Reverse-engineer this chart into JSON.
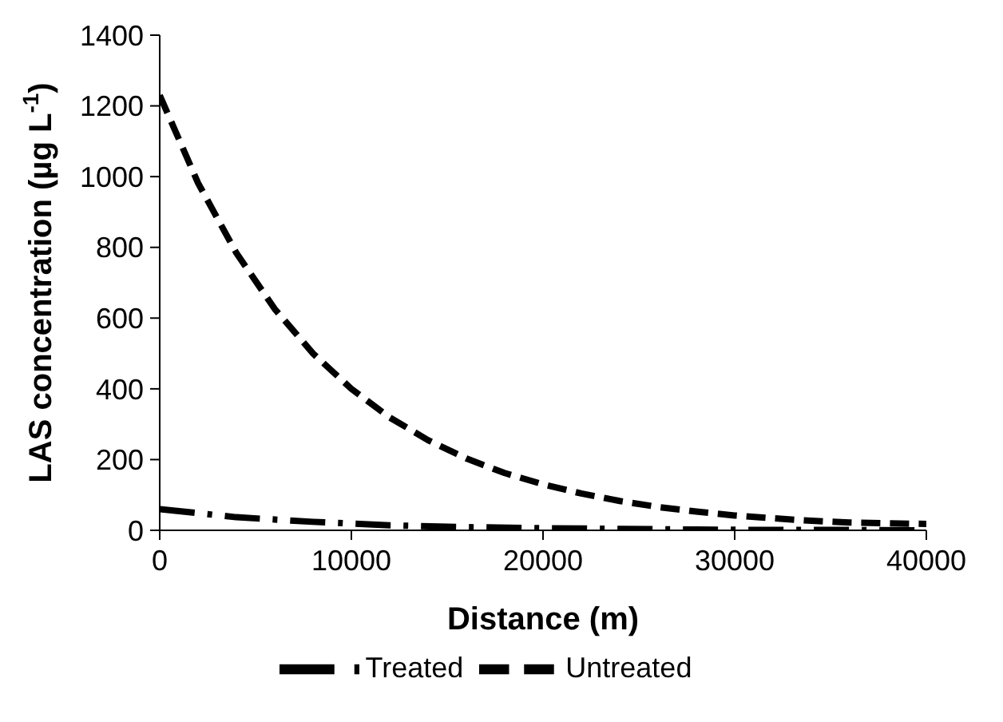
{
  "chart_data": {
    "type": "line",
    "xlabel": "Distance (m)",
    "ylabel": "LAS concentration (µg L$^{-1}$)",
    "xlim": [
      0,
      40000
    ],
    "xticks": [
      0,
      10000,
      20000,
      30000,
      40000
    ],
    "ylim": [
      0,
      1400
    ],
    "yticks": [
      0,
      200,
      400,
      600,
      800,
      1000,
      1200,
      1400
    ],
    "grid": false,
    "legend": "bottom",
    "marker": "none",
    "series": [
      {
        "name": "Treated",
        "color": "#000000",
        "line_style": "dashdot",
        "x": [
          0,
          4000,
          8000,
          12000,
          16000,
          20000,
          24000,
          28000,
          32000,
          36000,
          40000
        ],
        "values": [
          60,
          37,
          24,
          14,
          9,
          6,
          4,
          2,
          1,
          1,
          0
        ]
      },
      {
        "name": "Untreated",
        "color": "#000000",
        "line_style": "dashed",
        "x": [
          0,
          2000,
          4000,
          6000,
          8000,
          10000,
          12000,
          14000,
          16000,
          18000,
          20000,
          22000,
          24000,
          26000,
          28000,
          30000,
          32000,
          34000,
          36000,
          38000,
          40000
        ],
        "values": [
          1230,
          982,
          784,
          626,
          500,
          400,
          319,
          255,
          203,
          162,
          130,
          104,
          83,
          66,
          53,
          42,
          34,
          27,
          22,
          20,
          18
        ]
      }
    ]
  }
}
